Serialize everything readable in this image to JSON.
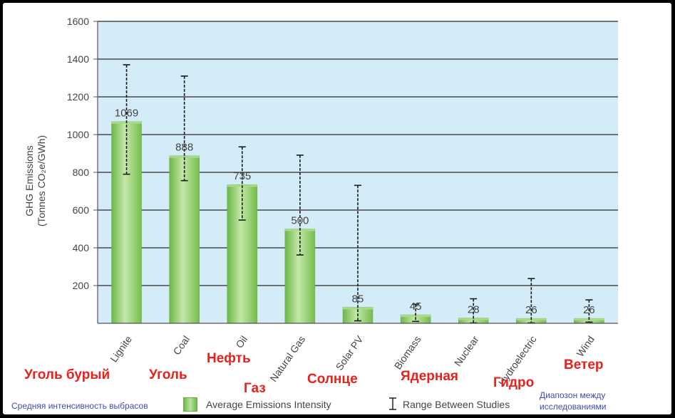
{
  "chart_data": {
    "type": "bar",
    "ylabel_line1": "GHG Emissions",
    "ylabel_line2": "(Tonnes CO₂e/GWh)",
    "ylim": [
      0,
      1600
    ],
    "yticks": [
      200,
      400,
      600,
      800,
      1000,
      1200,
      1400,
      1600
    ],
    "grid": true,
    "categories": [
      "Lignite",
      "Coal",
      "Oil",
      "Natural Gas",
      "Solar PV",
      "Biomass",
      "Nuclear",
      "Hydroelectric",
      "Wind"
    ],
    "values": [
      1069,
      888,
      735,
      500,
      85,
      45,
      28,
      26,
      26
    ],
    "ranges": [
      [
        790,
        1370
      ],
      [
        756,
        1310
      ],
      [
        547,
        935
      ],
      [
        362,
        891
      ],
      [
        13,
        731
      ],
      [
        10,
        101
      ],
      [
        2,
        130
      ],
      [
        2,
        237
      ],
      [
        6,
        124
      ]
    ],
    "legend": {
      "bar": "Average Emissions Intensity",
      "range": "Range Between Studies"
    },
    "colors": {
      "plot_bg": "#d4ecf7",
      "bar": "#8fcc6a",
      "axis": "#555555"
    }
  },
  "overlay": {
    "labels_ru": [
      "Уголь бурый",
      "Уголь",
      "Нефть",
      "Газ",
      "Солнце",
      "Ядерная",
      "Гидро",
      "Ветер"
    ],
    "legend_ru_left": "Средняя интенсивность выбрасов",
    "legend_ru_right_1": "Диапозон между",
    "legend_ru_right_2": "исследованиями",
    "colors": {
      "ru_label": "#e8211c",
      "ru_note": "#3d4fb0"
    }
  }
}
